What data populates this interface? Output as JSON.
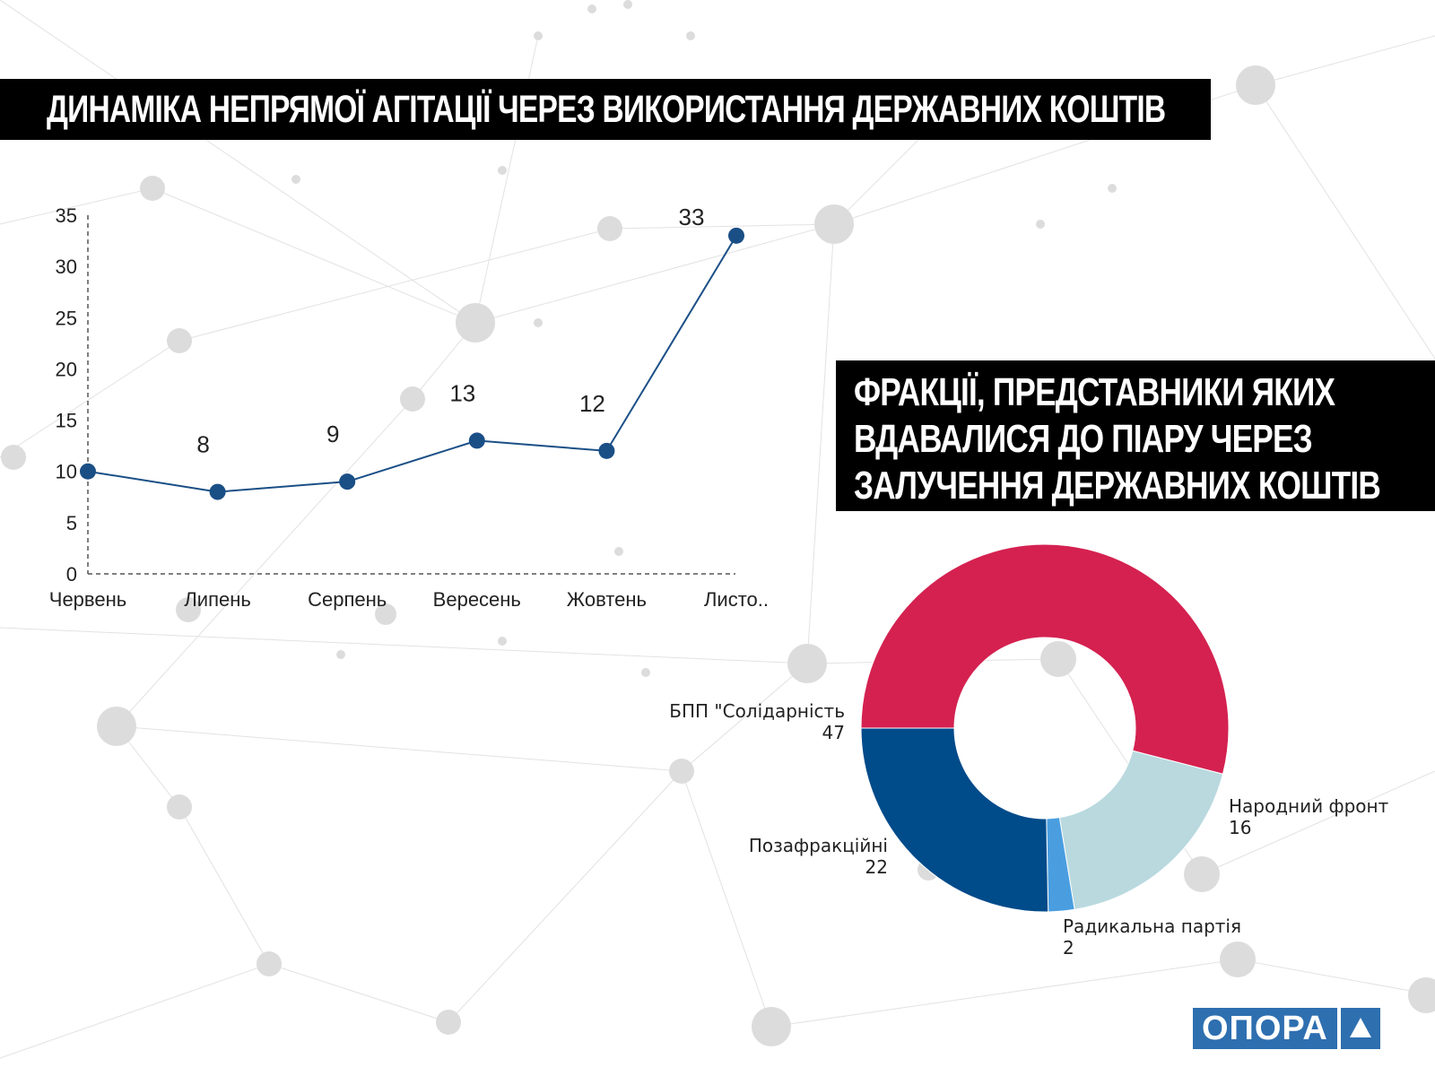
{
  "titles": {
    "line_chart": "ДИНАМІКА НЕПРЯМОЇ АГІТАЦІЇ ЧЕРЕЗ ВИКОРИСТАННЯ ДЕРЖАВНИХ КОШТІВ",
    "pie_chart_lines": [
      "ФРАКЦІЇ, ПРЕДСТАВНИКИ ЯКИХ",
      "ВДАВАЛИСЯ ДО ПІАРУ ЧЕРЕЗ",
      "ЗАЛУЧЕННЯ ДЕРЖАВНИХ КОШТІВ"
    ]
  },
  "logo": {
    "text": "ОПОРА",
    "icon": "triangle-icon"
  },
  "colors": {
    "line": "#1a4f86",
    "bpp": "#d42150",
    "narodnyi_front": "#b9d9df",
    "radykalna": "#4a9ee0",
    "pozafraktsiini": "#004b8a"
  },
  "chart_data": [
    {
      "type": "line",
      "title": "ДИНАМІКА НЕПРЯМОЇ АГІТАЦІЇ ЧЕРЕЗ ВИКОРИСТАННЯ ДЕРЖАВНИХ КОШТІВ",
      "categories": [
        "Червень",
        "Липень",
        "Серпень",
        "Вересень",
        "Жовтень",
        "Листо.."
      ],
      "values": [
        10,
        8,
        9,
        13,
        12,
        33
      ],
      "data_labels": [
        "",
        "8",
        "9",
        "13",
        "12",
        "33"
      ],
      "yticks": [
        0,
        5,
        10,
        15,
        20,
        25,
        30,
        35
      ],
      "ylim": [
        0,
        35
      ],
      "grid": false
    },
    {
      "type": "pie",
      "variant": "donut",
      "slices": [
        {
          "label": "БПП \"Солідарність",
          "value": 47,
          "color": "#d42150"
        },
        {
          "label": "Народний фронт",
          "value": 16,
          "color": "#b9d9df"
        },
        {
          "label": "Радикальна партія",
          "value": 2,
          "color": "#4a9ee0"
        },
        {
          "label": "Позафракційні",
          "value": 22,
          "color": "#004b8a"
        }
      ]
    }
  ]
}
